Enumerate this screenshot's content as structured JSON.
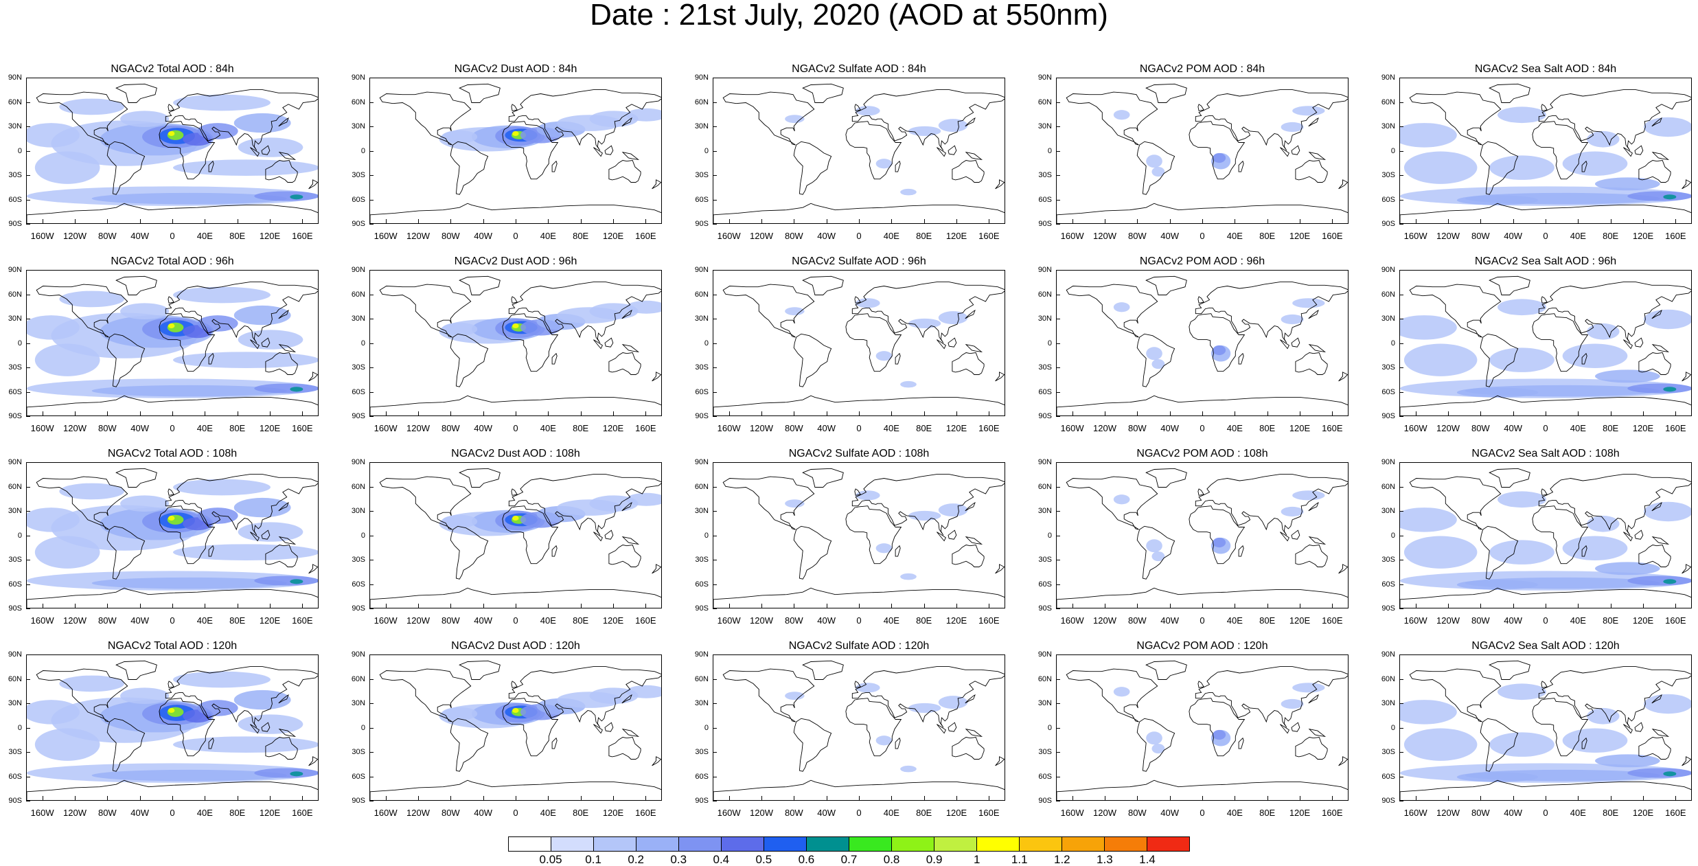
{
  "title": "Date : 21st July, 2020 (AOD at 550nm)",
  "lat_labels": [
    "90N",
    "60N",
    "30N",
    "0",
    "30S",
    "60S",
    "90S"
  ],
  "lon_labels": [
    "160W",
    "120W",
    "80W",
    "40W",
    "0",
    "40E",
    "80E",
    "120E",
    "160E"
  ],
  "lon_values": [
    -160,
    -120,
    -80,
    -40,
    0,
    40,
    80,
    120,
    160
  ],
  "colorbar": {
    "levels": [
      "0.05",
      "0.1",
      "0.2",
      "0.3",
      "0.4",
      "0.5",
      "0.6",
      "0.7",
      "0.8",
      "0.9",
      "1",
      "1.1",
      "1.2",
      "1.3",
      "1.4"
    ],
    "colors": [
      "#ffffff",
      "#d3ddfd",
      "#b4c6f9",
      "#9ab1f7",
      "#7e93f2",
      "#5d6cea",
      "#1f5ff0",
      "#009090",
      "#39e91f",
      "#8ef217",
      "#c0f040",
      "#ffff00",
      "#fbc50f",
      "#f7a308",
      "#f57d08",
      "#f02a14"
    ]
  },
  "panels": [
    {
      "title": "NGACv2 Total AOD : 84h",
      "species": "total"
    },
    {
      "title": "NGACv2 Dust AOD : 84h",
      "species": "dust"
    },
    {
      "title": "NGACv2 Sulfate AOD : 84h",
      "species": "sulfate"
    },
    {
      "title": "NGACv2 POM AOD : 84h",
      "species": "pom"
    },
    {
      "title": "NGACv2 Sea Salt AOD : 84h",
      "species": "seasalt"
    },
    {
      "title": "NGACv2 Total AOD : 96h",
      "species": "total"
    },
    {
      "title": "NGACv2 Dust AOD : 96h",
      "species": "dust"
    },
    {
      "title": "NGACv2 Sulfate AOD : 96h",
      "species": "sulfate"
    },
    {
      "title": "NGACv2 POM AOD : 96h",
      "species": "pom"
    },
    {
      "title": "NGACv2 Sea Salt AOD : 96h",
      "species": "seasalt"
    },
    {
      "title": "NGACv2 Total AOD : 108h",
      "species": "total"
    },
    {
      "title": "NGACv2 Dust AOD : 108h",
      "species": "dust"
    },
    {
      "title": "NGACv2 Sulfate AOD : 108h",
      "species": "sulfate"
    },
    {
      "title": "NGACv2 POM AOD : 108h",
      "species": "pom"
    },
    {
      "title": "NGACv2 Sea Salt AOD : 108h",
      "species": "seasalt"
    },
    {
      "title": "NGACv2 Total AOD : 120h",
      "species": "total"
    },
    {
      "title": "NGACv2 Dust AOD : 120h",
      "species": "dust"
    },
    {
      "title": "NGACv2 Sulfate AOD : 120h",
      "species": "sulfate"
    },
    {
      "title": "NGACv2 POM AOD : 120h",
      "species": "pom"
    },
    {
      "title": "NGACv2 Sea Salt  AOD : 120h",
      "species": "seasalt"
    }
  ]
}
